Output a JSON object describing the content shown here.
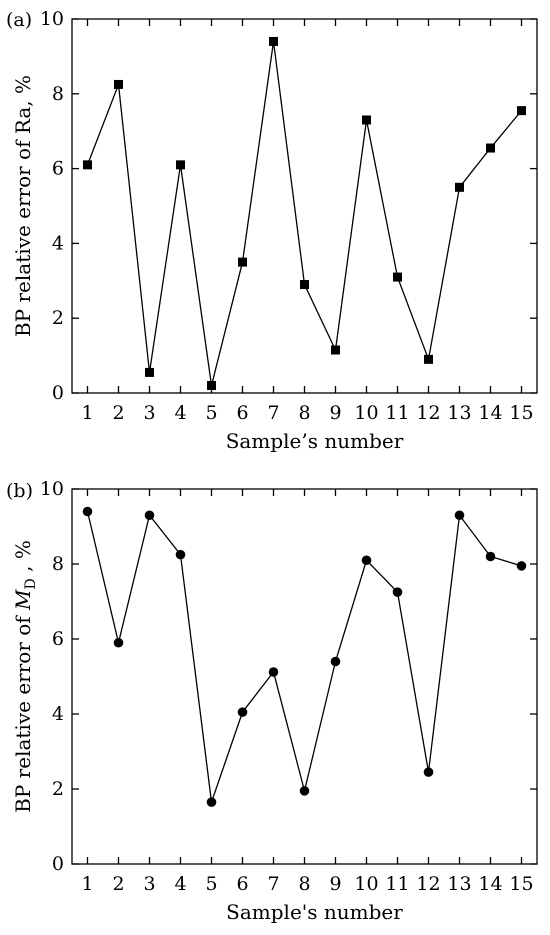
{
  "chart_data": [
    {
      "type": "line",
      "panel_label": "(a)",
      "marker": "square",
      "xlabel": "Sample’s number",
      "ylabel": "BP relative error of Ra, %",
      "ylabel_parts": {
        "prefix": "BP relative error of Ra, %",
        "italic": "",
        "subscript": "",
        "suffix": ""
      },
      "x": [
        1,
        2,
        3,
        4,
        5,
        6,
        7,
        8,
        9,
        10,
        11,
        12,
        13,
        14,
        15
      ],
      "x_ticks": [
        "1",
        "2",
        "3",
        "4",
        "5",
        "6",
        "7",
        "8",
        "9",
        "10",
        "11",
        "12",
        "13",
        "14",
        "15"
      ],
      "xlim": [
        0.5,
        15.5
      ],
      "ylim": [
        0,
        10
      ],
      "y_ticks": [
        "0",
        "2",
        "4",
        "6",
        "8",
        "10"
      ],
      "grid": false,
      "series": [
        {
          "values": [
            6.1,
            8.25,
            0.55,
            6.1,
            0.2,
            3.5,
            9.4,
            2.9,
            1.15,
            7.3,
            3.1,
            0.9,
            5.5,
            6.55,
            7.55
          ]
        }
      ]
    },
    {
      "type": "line",
      "panel_label": "(b)",
      "marker": "circle",
      "xlabel": "Sample's number",
      "ylabel": "BP relative error of MD , %",
      "ylabel_parts": {
        "prefix": "BP relative error of ",
        "italic": "M",
        "subscript": "D",
        "suffix": " , %"
      },
      "x": [
        1,
        2,
        3,
        4,
        5,
        6,
        7,
        8,
        9,
        10,
        11,
        12,
        13,
        14,
        15
      ],
      "x_ticks": [
        "1",
        "2",
        "3",
        "4",
        "5",
        "6",
        "7",
        "8",
        "9",
        "10",
        "11",
        "12",
        "13",
        "14",
        "15"
      ],
      "xlim": [
        0.5,
        15.5
      ],
      "ylim": [
        0,
        10
      ],
      "y_ticks": [
        "0",
        "2",
        "4",
        "6",
        "8",
        "10"
      ],
      "grid": false,
      "series": [
        {
          "values": [
            9.4,
            5.9,
            9.3,
            8.25,
            1.65,
            4.05,
            5.12,
            1.95,
            5.4,
            8.1,
            7.25,
            2.45,
            9.3,
            8.2,
            7.95
          ]
        }
      ]
    }
  ]
}
